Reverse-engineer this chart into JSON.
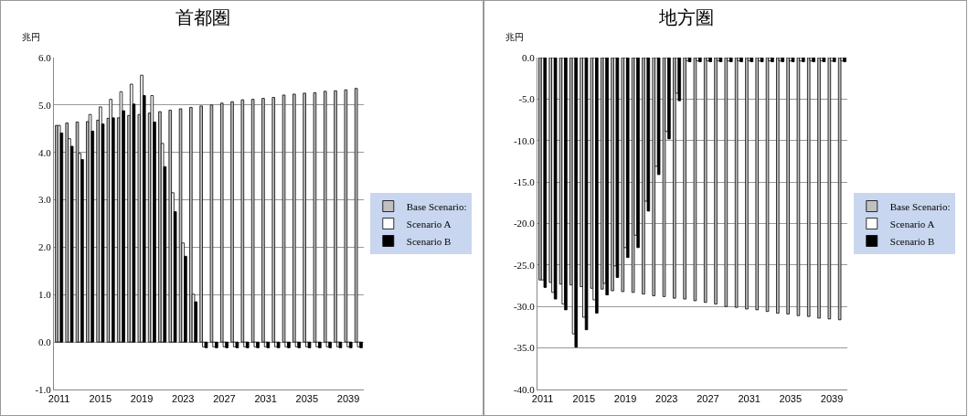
{
  "chart_data": [
    {
      "type": "bar",
      "title": "首都圏",
      "ylabel": "兆円",
      "categories": [
        "2011",
        null,
        null,
        null,
        "2015",
        null,
        null,
        null,
        "2019",
        null,
        null,
        null,
        "2023",
        null,
        null,
        null,
        "2027",
        null,
        null,
        null,
        "2031",
        null,
        null,
        null,
        "2035",
        null,
        null,
        null,
        "2039",
        null
      ],
      "series": [
        {
          "name": "Base Scenario:",
          "color": "#c0c0c0",
          "values": [
            4.57,
            4.62,
            4.64,
            4.65,
            4.68,
            4.72,
            4.73,
            4.78,
            4.8,
            4.83,
            4.86,
            4.89,
            4.92,
            4.95,
            4.98,
            5.0,
            5.04,
            5.07,
            5.11,
            5.12,
            5.14,
            5.16,
            5.21,
            5.23,
            5.25,
            5.26,
            5.29,
            5.3,
            5.32,
            5.35
          ]
        },
        {
          "name": "Scenario A",
          "color": "#ffffff",
          "values": [
            4.57,
            4.29,
            3.98,
            4.8,
            4.96,
            5.12,
            5.28,
            5.44,
            5.63,
            5.2,
            4.19,
            3.15,
            2.09,
            1.01,
            -0.1,
            -0.1,
            -0.1,
            -0.1,
            -0.1,
            -0.1,
            -0.1,
            -0.1,
            -0.1,
            -0.1,
            -0.1,
            -0.1,
            -0.1,
            -0.1,
            -0.1,
            -0.1
          ]
        },
        {
          "name": "Scenario B",
          "color": "#000000",
          "values": [
            4.41,
            4.13,
            3.85,
            4.45,
            4.6,
            4.73,
            4.88,
            5.02,
            5.2,
            4.64,
            3.7,
            2.75,
            1.81,
            0.85,
            -0.12,
            -0.12,
            -0.12,
            -0.12,
            -0.12,
            -0.12,
            -0.12,
            -0.12,
            -0.12,
            -0.12,
            -0.12,
            -0.12,
            -0.12,
            -0.12,
            -0.12,
            -0.12
          ]
        }
      ],
      "ylim": [
        -1,
        6
      ],
      "yticks": [
        {
          "value": -1,
          "label": "-1.0"
        },
        {
          "value": 0,
          "label": "0.0"
        },
        {
          "value": 1,
          "label": "1.0"
        },
        {
          "value": 2,
          "label": "2.0"
        },
        {
          "value": 3,
          "label": "3.0"
        },
        {
          "value": 4,
          "label": "4.0"
        },
        {
          "value": 5,
          "label": "5.0"
        },
        {
          "value": 6,
          "label": "6.0"
        }
      ],
      "grid": "y",
      "legend": "right"
    },
    {
      "type": "bar",
      "title": "地方圏",
      "ylabel": "兆円",
      "categories": [
        "2011",
        null,
        null,
        null,
        "2015",
        null,
        null,
        null,
        "2019",
        null,
        null,
        null,
        "2023",
        null,
        null,
        null,
        "2027",
        null,
        null,
        null,
        "2031",
        null,
        null,
        null,
        "2035",
        null,
        null,
        null,
        "2039",
        null
      ],
      "series": [
        {
          "name": "Base Scenario:",
          "color": "#c0c0c0",
          "values": [
            -26.8,
            -27.1,
            -27.3,
            -27.4,
            -27.6,
            -27.8,
            -27.9,
            -28.1,
            -28.2,
            -28.3,
            -28.5,
            -28.7,
            -28.8,
            -29.0,
            -29.1,
            -29.3,
            -29.5,
            -29.7,
            -30.0,
            -30.1,
            -30.3,
            -30.4,
            -30.6,
            -30.8,
            -30.9,
            -31.1,
            -31.2,
            -31.4,
            -31.5,
            -31.6
          ]
        },
        {
          "name": "Scenario A",
          "color": "#ffffff",
          "values": [
            -26.8,
            -28.3,
            -29.7,
            -33.3,
            -31.3,
            -29.2,
            -27.2,
            -25.1,
            -22.9,
            -21.4,
            -17.3,
            -13.1,
            -8.9,
            -4.3,
            -0.4,
            -0.4,
            -0.4,
            -0.4,
            -0.4,
            -0.4,
            -0.4,
            -0.4,
            -0.4,
            -0.4,
            -0.4,
            -0.4,
            -0.4,
            -0.4,
            -0.4,
            -0.4
          ]
        },
        {
          "name": "Scenario B",
          "color": "#000000",
          "values": [
            -27.7,
            -29.1,
            -30.4,
            -34.9,
            -32.8,
            -30.8,
            -28.6,
            -26.5,
            -24.1,
            -22.9,
            -18.5,
            -14.1,
            -9.8,
            -5.2,
            -0.5,
            -0.5,
            -0.5,
            -0.5,
            -0.5,
            -0.5,
            -0.5,
            -0.5,
            -0.5,
            -0.5,
            -0.5,
            -0.5,
            -0.5,
            -0.5,
            -0.5,
            -0.5
          ]
        }
      ],
      "ylim": [
        -40,
        0
      ],
      "yticks": [
        {
          "value": -40,
          "label": "-40.0"
        },
        {
          "value": -35,
          "label": "-35.0"
        },
        {
          "value": -30,
          "label": "-30.0"
        },
        {
          "value": -25,
          "label": "-25.0"
        },
        {
          "value": -20,
          "label": "-20.0"
        },
        {
          "value": -15,
          "label": "-15.0"
        },
        {
          "value": -10,
          "label": "-10.0"
        },
        {
          "value": -5,
          "label": "-5.0"
        },
        {
          "value": 0,
          "label": "0.0"
        }
      ],
      "grid": "y",
      "legend": "right"
    }
  ]
}
